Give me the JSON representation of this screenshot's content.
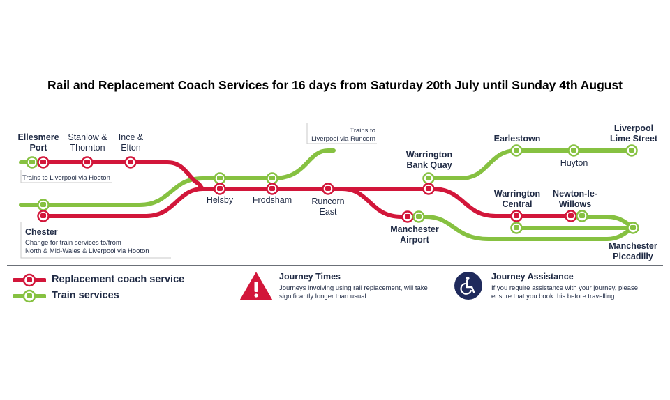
{
  "title": "Rail and Replacement Coach Services for 16 days from Saturday 20th July until Sunday 4th August",
  "colors": {
    "coach": "#d2163a",
    "train": "#86c141",
    "text": "#1f2a44",
    "warning": "#d2163a",
    "assist": "#1f2a5c"
  },
  "stations": {
    "ellesmere_port": "Ellesmere\nPort",
    "stanlow": "Stanlow &\nThornton",
    "ince": "Ince &\nElton",
    "helsby": "Helsby",
    "frodsham": "Frodsham",
    "runcorn_east": "Runcorn\nEast",
    "chester": "Chester",
    "manchester_airport": "Manchester\nAirport",
    "warrington_bq": "Warrington\nBank Quay",
    "earlestown": "Earlestown",
    "huyton": "Huyton",
    "liverpool_ls": "Liverpool\nLime Street",
    "warrington_central": "Warrington\nCentral",
    "newton": "Newton-le-\nWillows",
    "manchester_picc": "Manchester\nPiccadilly"
  },
  "notes": {
    "hooton": "Trains to Liverpool via Hooton",
    "runcorn": "Trains to\nLiverpool via Runcorn",
    "chester": "Change for train services to/from\nNorth & Mid-Wales & Liverpool via Hooton"
  },
  "legend": {
    "coach": "Replacement coach service",
    "train": "Train services"
  },
  "journey_times": {
    "heading": "Journey Times",
    "body": "Journeys involving using rail replacement, will take significantly longer than usual."
  },
  "journey_assistance": {
    "heading": "Journey Assistance",
    "body": "If you require assistance  with your journey, please ensure that you book this before travelling."
  }
}
